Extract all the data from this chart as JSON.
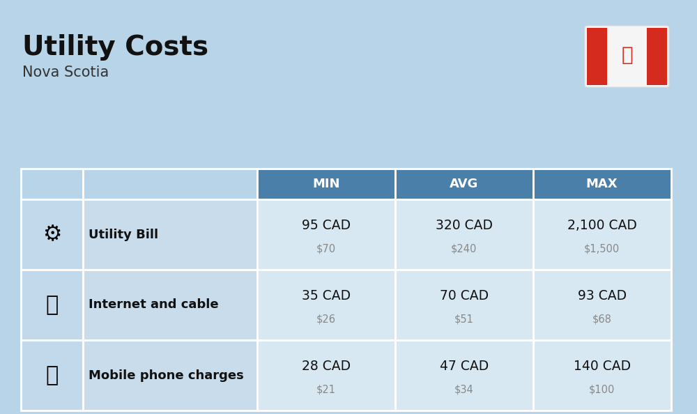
{
  "title": "Utility Costs",
  "subtitle": "Nova Scotia",
  "background_color": "#b8d4e8",
  "header_bg_color": "#4a7faa",
  "header_text_color": "#ffffff",
  "icon_col_bg": "#c2d9eb",
  "label_col_bg": "#c8dcec",
  "data_col_bg": "#d8e8f3",
  "row_divider_color": "#ffffff",
  "headers": [
    "MIN",
    "AVG",
    "MAX"
  ],
  "rows": [
    {
      "label": "Utility Bill",
      "min_cad": "95 CAD",
      "min_usd": "$70",
      "avg_cad": "320 CAD",
      "avg_usd": "$240",
      "max_cad": "2,100 CAD",
      "max_usd": "$1,500"
    },
    {
      "label": "Internet and cable",
      "min_cad": "35 CAD",
      "min_usd": "$26",
      "avg_cad": "70 CAD",
      "avg_usd": "$51",
      "max_cad": "93 CAD",
      "max_usd": "$68"
    },
    {
      "label": "Mobile phone charges",
      "min_cad": "28 CAD",
      "min_usd": "$21",
      "avg_cad": "47 CAD",
      "avg_usd": "$34",
      "max_cad": "140 CAD",
      "max_usd": "$100"
    }
  ],
  "flag_red": "#d52b1e",
  "flag_white": "#f5f5f5",
  "title_color": "#111111",
  "subtitle_color": "#333333",
  "value_color": "#111111",
  "usd_color": "#888888",
  "label_color": "#111111"
}
